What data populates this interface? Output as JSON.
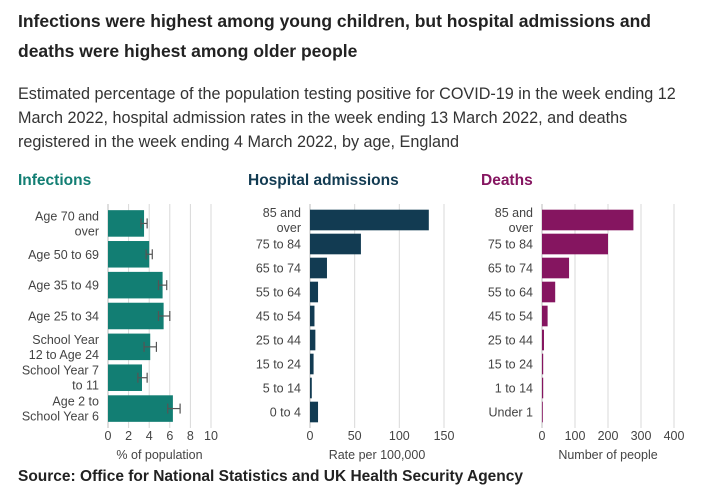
{
  "title": "Infections were highest among young children, but hospital admissions and deaths were highest among older people",
  "subtitle": "Estimated percentage of the population testing positive for COVID-19 in the week ending 12 March 2022, hospital admission rates in the week ending 13 March 2022, and deaths registered in the week ending 4 March 2022, by age, England",
  "source": "Source: Office for National Statistics and UK Health Security Agency",
  "colors": {
    "infections": "#127e73",
    "hospital": "#123b52",
    "deaths": "#851560",
    "grid": "#d9d9d9",
    "axis": "#bdbdbd",
    "error_bar": "#555555",
    "text": "#444444"
  },
  "chart_data": [
    {
      "type": "bar",
      "orientation": "horizontal",
      "title": "Infections",
      "categories": [
        [
          "Age 70 and",
          "over"
        ],
        [
          "Age 50 to 69"
        ],
        [
          "Age 35 to 49"
        ],
        [
          "Age 25 to 34"
        ],
        [
          "School Year",
          "12 to Age 24"
        ],
        [
          "School Year 7",
          "to 11"
        ],
        [
          "Age 2 to",
          "School Year 6"
        ]
      ],
      "values": [
        3.5,
        4.0,
        5.3,
        5.4,
        4.1,
        3.3,
        6.3
      ],
      "error_low": [
        3.2,
        3.7,
        4.9,
        4.9,
        3.5,
        2.9,
        5.8
      ],
      "error_high": [
        3.8,
        4.3,
        5.7,
        6.0,
        4.7,
        3.8,
        7.0
      ],
      "xlabel": "% of population",
      "xlim": [
        0,
        10
      ],
      "xticks": [
        0,
        2,
        4,
        6,
        8,
        10
      ],
      "grid": true
    },
    {
      "type": "bar",
      "orientation": "horizontal",
      "title": "Hospital admissions",
      "categories": [
        [
          "85 and",
          "over"
        ],
        [
          "75 to 84"
        ],
        [
          "65 to 74"
        ],
        [
          "55 to 64"
        ],
        [
          "45 to 54"
        ],
        [
          "25 to 44"
        ],
        [
          "15 to 24"
        ],
        [
          "5 to 14"
        ],
        [
          "0 to 4"
        ]
      ],
      "values": [
        133,
        57,
        19,
        9,
        5,
        6,
        4,
        2,
        9
      ],
      "xlabel": "Rate per 100,000",
      "xlim": [
        0,
        150
      ],
      "xticks": [
        0,
        50,
        100,
        150
      ],
      "grid": true
    },
    {
      "type": "bar",
      "orientation": "horizontal",
      "title": "Deaths",
      "categories": [
        [
          "85 and",
          "over"
        ],
        [
          "75 to 84"
        ],
        [
          "65 to 74"
        ],
        [
          "55 to 64"
        ],
        [
          "45 to 54"
        ],
        [
          "25 to 44"
        ],
        [
          "15 to 24"
        ],
        [
          "1 to 14"
        ],
        [
          "Under 1"
        ]
      ],
      "values": [
        277,
        200,
        82,
        40,
        17,
        6,
        1,
        1,
        0
      ],
      "xlabel": "Number of people",
      "xlim": [
        0,
        400
      ],
      "xticks": [
        0,
        100,
        200,
        300,
        400
      ],
      "grid": true
    }
  ]
}
